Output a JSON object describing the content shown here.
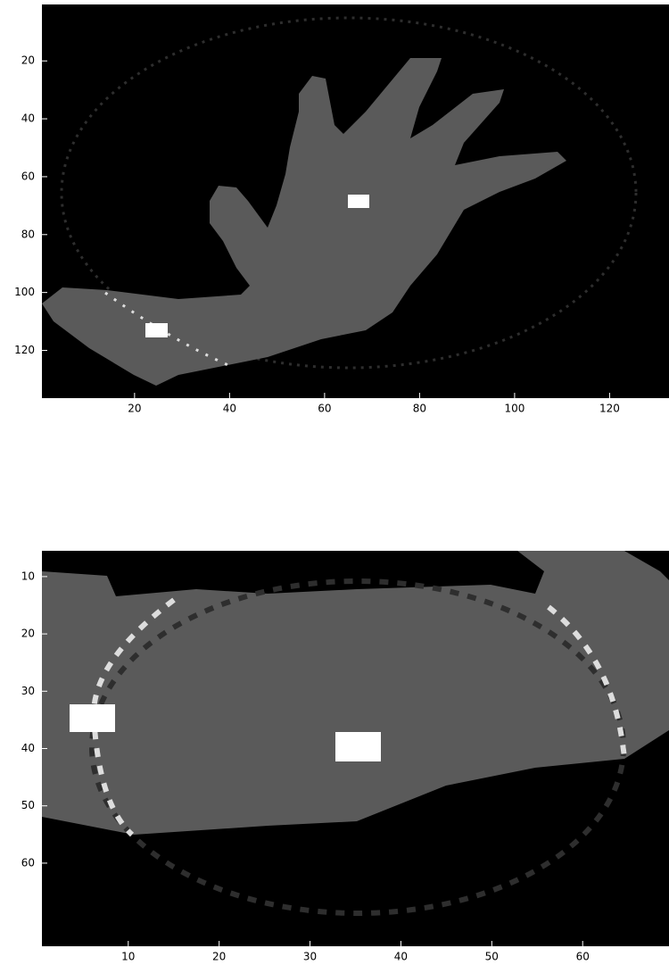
{
  "chart_data": [
    {
      "type": "image",
      "xlim": [
        0.5,
        132.5
      ],
      "ylim": [
        0.5,
        136.5
      ],
      "xticks": [
        20,
        40,
        60,
        80,
        100,
        120
      ],
      "yticks": [
        20,
        40,
        60,
        80,
        100,
        120
      ]
    },
    {
      "type": "image",
      "xlim": [
        0.5,
        69.5
      ],
      "ylim": [
        5.5,
        74.5
      ],
      "xticks": [
        10,
        20,
        30,
        40,
        50,
        60
      ],
      "yticks": [
        10,
        20,
        30,
        40,
        50,
        60
      ]
    }
  ]
}
